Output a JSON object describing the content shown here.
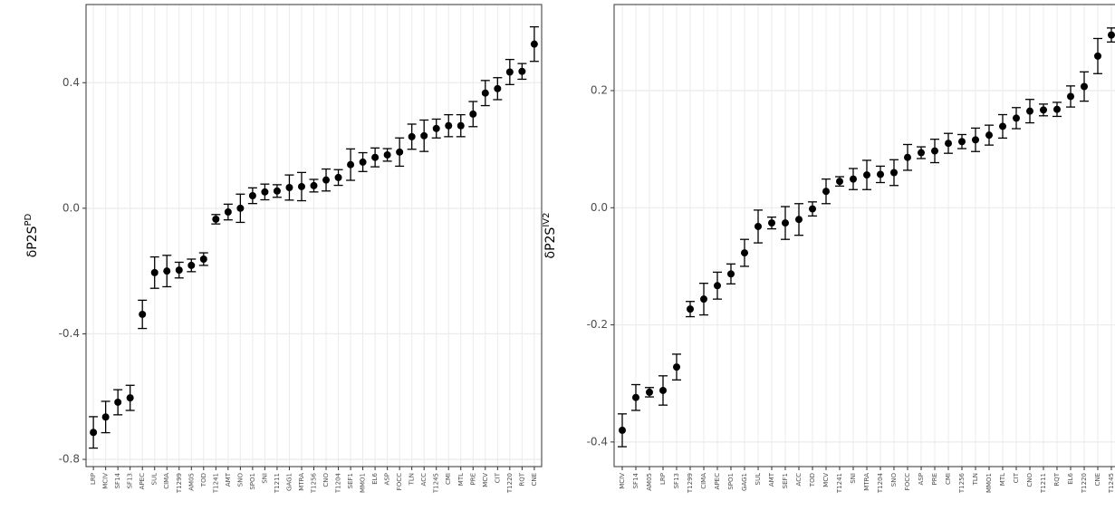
{
  "chart_data": [
    {
      "type": "scatter",
      "ylabel": "δP2S",
      "ylabel_sup": "PD",
      "categories": [
        "LRP",
        "MCIV",
        "SF14",
        "SF13",
        "APEC",
        "SUL",
        "CIMA",
        "T1299",
        "AM05",
        "TOD",
        "T1241",
        "AMT",
        "SNO",
        "SPO1",
        "SNI",
        "T1211",
        "GAG1",
        "MTRA",
        "T1256",
        "CNO",
        "T1204",
        "SEF1",
        "MMO1",
        "EL6",
        "ASP",
        "FOCC",
        "TLN",
        "ACC",
        "T1245",
        "CMI",
        "MTL",
        "PRE",
        "MCV",
        "CIT",
        "T1220",
        "RQT",
        "CNE"
      ],
      "values": [
        -0.714,
        -0.665,
        -0.618,
        -0.604,
        -0.338,
        -0.205,
        -0.2,
        -0.197,
        -0.182,
        -0.162,
        -0.035,
        -0.012,
        0.0,
        0.04,
        0.052,
        0.055,
        0.066,
        0.069,
        0.072,
        0.09,
        0.098,
        0.139,
        0.147,
        0.162,
        0.17,
        0.179,
        0.228,
        0.231,
        0.254,
        0.263,
        0.263,
        0.3,
        0.367,
        0.381,
        0.434,
        0.436,
        0.523
      ],
      "errors": [
        0.05,
        0.05,
        0.04,
        0.04,
        0.045,
        0.05,
        0.05,
        0.025,
        0.02,
        0.02,
        0.015,
        0.025,
        0.045,
        0.025,
        0.025,
        0.02,
        0.04,
        0.045,
        0.02,
        0.035,
        0.025,
        0.05,
        0.03,
        0.03,
        0.02,
        0.045,
        0.04,
        0.05,
        0.03,
        0.035,
        0.035,
        0.04,
        0.04,
        0.035,
        0.04,
        0.025,
        0.055
      ],
      "color": "#000000",
      "ylim": [
        -0.823,
        0.649
      ],
      "yticks": [
        -0.8,
        -0.4,
        {
          "value": 0,
          "label": "0.0"
        },
        0.4
      ],
      "grid": true
    },
    {
      "type": "scatter",
      "ylabel": "δP2S",
      "ylabel_sup": "IV2",
      "categories": [
        "MCIV",
        "SF14",
        "AM05",
        "LRP",
        "SF13",
        "T1299",
        "CIMA",
        "APEC",
        "SPO1",
        "GAG1",
        "SUL",
        "AMT",
        "SEF1",
        "ACC",
        "TOD",
        "MCV",
        "T1241",
        "SNI",
        "MTRA",
        "T1204",
        "SNO",
        "FOCC",
        "ASP",
        "PRE",
        "CMI",
        "T1256",
        "TLN",
        "MMO1",
        "MTL",
        "CIT",
        "CNO",
        "T1211",
        "RQT",
        "EL6",
        "T1220",
        "CNE",
        "T1245"
      ],
      "values": [
        -0.38,
        -0.324,
        -0.315,
        -0.312,
        -0.272,
        -0.173,
        -0.156,
        -0.133,
        -0.113,
        -0.077,
        -0.032,
        -0.026,
        -0.026,
        -0.02,
        -0.002,
        0.028,
        0.045,
        0.049,
        0.056,
        0.057,
        0.06,
        0.086,
        0.094,
        0.097,
        0.11,
        0.113,
        0.116,
        0.124,
        0.139,
        0.153,
        0.165,
        0.167,
        0.168,
        0.19,
        0.207,
        0.259,
        0.295
      ],
      "errors": [
        0.028,
        0.022,
        0.008,
        0.025,
        0.022,
        0.013,
        0.027,
        0.023,
        0.017,
        0.023,
        0.028,
        0.01,
        0.028,
        0.027,
        0.012,
        0.021,
        0.008,
        0.018,
        0.025,
        0.014,
        0.022,
        0.022,
        0.01,
        0.02,
        0.017,
        0.012,
        0.02,
        0.017,
        0.02,
        0.018,
        0.02,
        0.01,
        0.012,
        0.018,
        0.025,
        0.03,
        0.012
      ],
      "color": "#000000",
      "ylim": [
        -0.442,
        0.347
      ],
      "yticks": [
        -0.4,
        -0.2,
        {
          "value": 0,
          "label": "0.0"
        },
        0.2
      ],
      "grid": true
    }
  ]
}
